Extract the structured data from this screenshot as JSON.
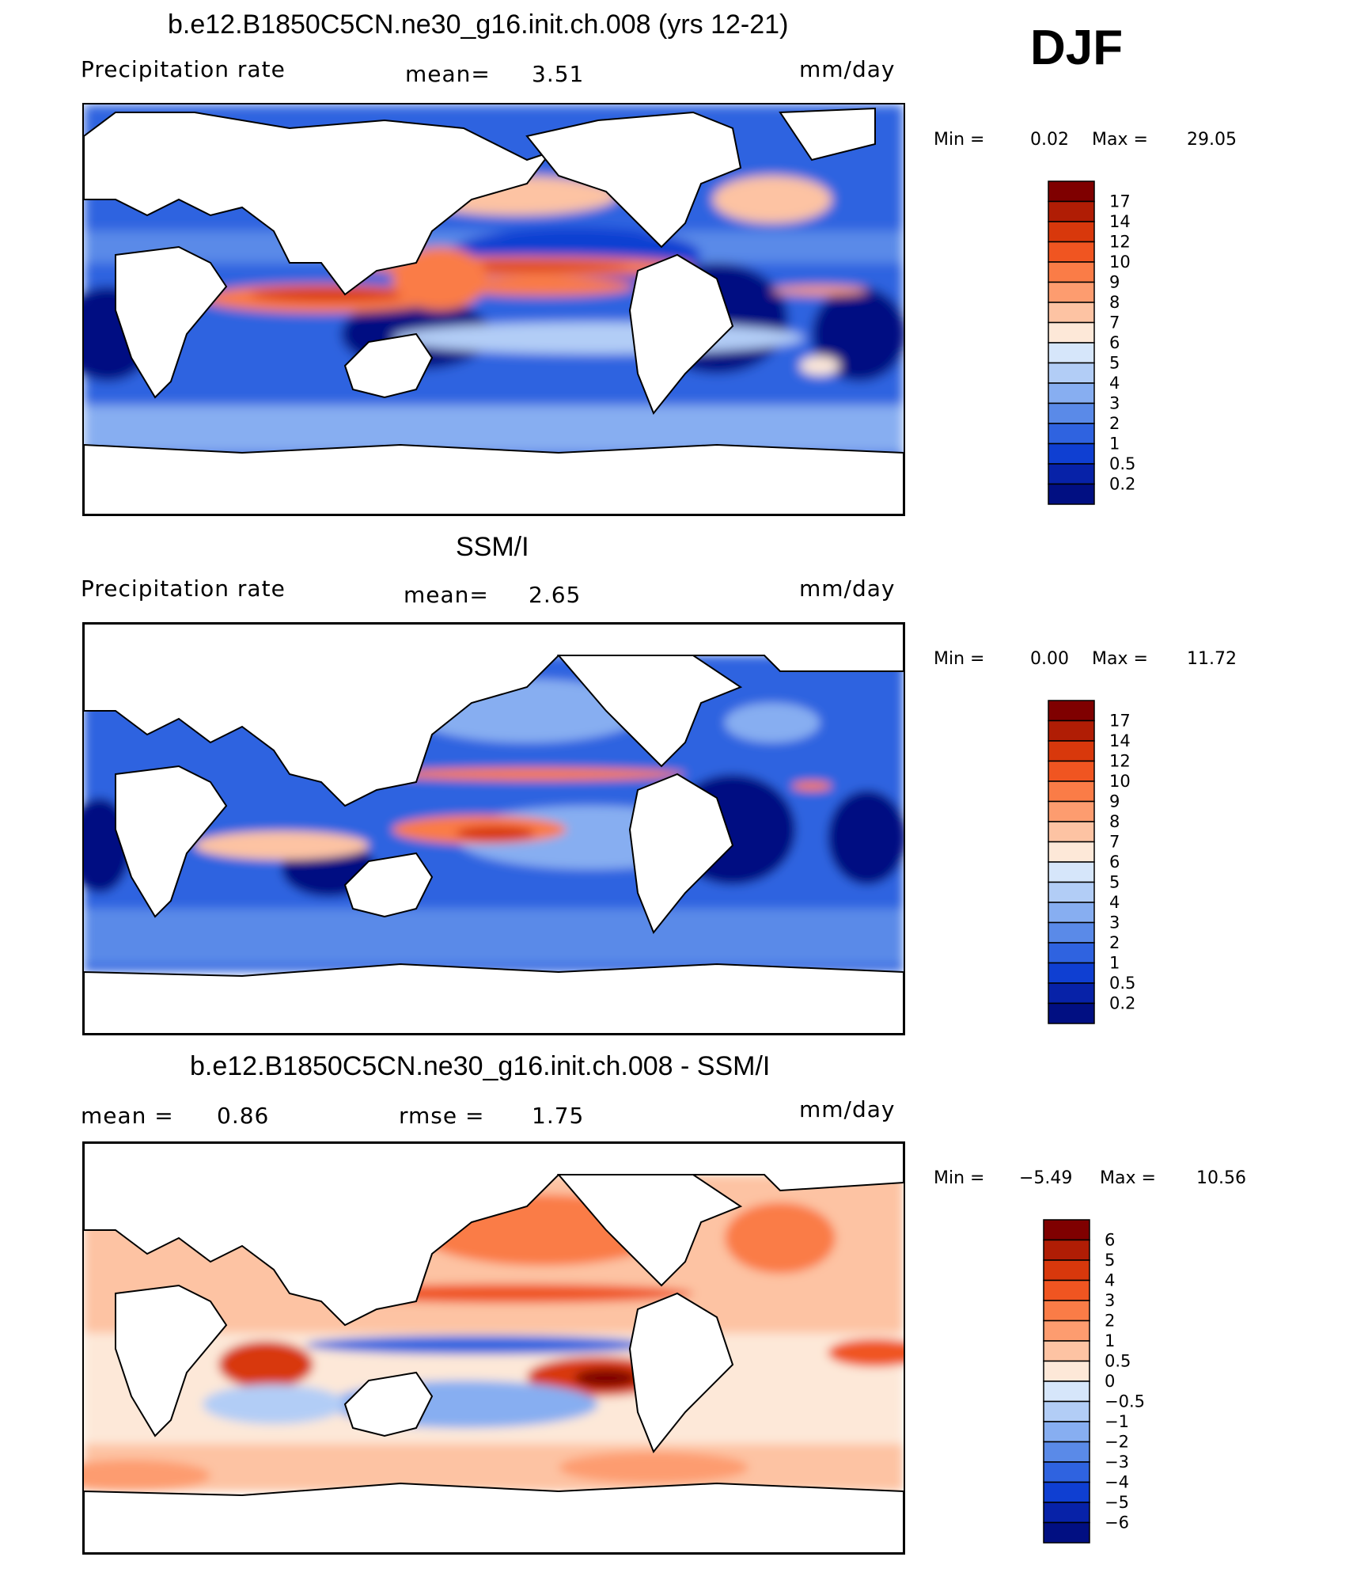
{
  "season": "DJF",
  "panels": [
    {
      "title": "b.e12.B1850C5CN.ne30_g16.init.ch.008 (yrs 12-21)",
      "left_label": "Precipitation  rate",
      "mid_label": "mean=",
      "mid_value": "3.51",
      "right_label": "mm/day",
      "range_min_label": "Min  =",
      "range_min_value": "0.02",
      "range_max_label": "Max  =",
      "range_max_value": "29.05",
      "colorbar_labels": [
        "17",
        "14",
        "12",
        "10",
        "9",
        "8",
        "7",
        "6",
        "5",
        "4",
        "3",
        "2",
        "1",
        "0.5",
        "0.2"
      ]
    },
    {
      "title": "SSM/I",
      "left_label": "Precipitation  rate",
      "mid_label": "mean=",
      "mid_value": "2.65",
      "right_label": "mm/day",
      "range_min_label": "Min  =",
      "range_min_value": "0.00",
      "range_max_label": "Max  =",
      "range_max_value": "11.72",
      "colorbar_labels": [
        "17",
        "14",
        "12",
        "10",
        "9",
        "8",
        "7",
        "6",
        "5",
        "4",
        "3",
        "2",
        "1",
        "0.5",
        "0.2"
      ]
    },
    {
      "title": "b.e12.B1850C5CN.ne30_g16.init.ch.008 - SSM/I",
      "left_label": "mean  =",
      "left_value": "0.86",
      "mid_label": "rmse  =",
      "mid_value": "1.75",
      "right_label": "mm/day",
      "range_min_label": "Min  =",
      "range_min_value": "−5.49",
      "range_max_label": "Max  =",
      "range_max_value": "10.56",
      "colorbar_labels": [
        "6",
        "5",
        "4",
        "3",
        "2",
        "1",
        "0.5",
        "0",
        "−0.5",
        "−1",
        "−2",
        "−3",
        "−4",
        "−5",
        "−6"
      ]
    }
  ],
  "colors": {
    "precip_scale": [
      "#7f0000",
      "#b01d05",
      "#d8380c",
      "#f05521",
      "#fa7c47",
      "#fd9c6f",
      "#fdc3a3",
      "#fde8d8",
      "#d6e6fa",
      "#b2cdf6",
      "#87aef1",
      "#5a8ae8",
      "#2f63e0",
      "#0f3fd2",
      "#0722a8",
      "#010f82"
    ],
    "diff_scale": [
      "#7f0000",
      "#b01d05",
      "#d8380c",
      "#f05521",
      "#fa7c47",
      "#fd9c6f",
      "#fdc3a3",
      "#fde8d8",
      "#d6e6fa",
      "#b2cdf6",
      "#87aef1",
      "#5a8ae8",
      "#2f63e0",
      "#0f3fd2",
      "#0722a8",
      "#010f82"
    ],
    "land": "#ffffff"
  },
  "chart_data": [
    {
      "type": "heatmap",
      "title": "b.e12.B1850C5CN.ne30_g16.init.ch.008 (yrs 12-21)",
      "variable": "Precipitation rate",
      "units": "mm/day",
      "mean": 3.51,
      "min": 0.02,
      "max": 29.05,
      "contour_levels": [
        0.2,
        0.5,
        1,
        2,
        3,
        4,
        5,
        6,
        7,
        8,
        9,
        10,
        12,
        14,
        17
      ],
      "season": "DJF"
    },
    {
      "type": "heatmap",
      "title": "SSM/I",
      "variable": "Precipitation rate",
      "units": "mm/day",
      "mean": 2.65,
      "min": 0.0,
      "max": 11.72,
      "contour_levels": [
        0.2,
        0.5,
        1,
        2,
        3,
        4,
        5,
        6,
        7,
        8,
        9,
        10,
        12,
        14,
        17
      ],
      "season": "DJF"
    },
    {
      "type": "heatmap",
      "title": "b.e12.B1850C5CN.ne30_g16.init.ch.008 - SSM/I",
      "units": "mm/day",
      "mean": 0.86,
      "rmse": 1.75,
      "min": -5.49,
      "max": 10.56,
      "contour_levels": [
        -6,
        -5,
        -4,
        -3,
        -2,
        -1,
        -0.5,
        0,
        0.5,
        1,
        2,
        3,
        4,
        5,
        6
      ],
      "season": "DJF"
    }
  ]
}
